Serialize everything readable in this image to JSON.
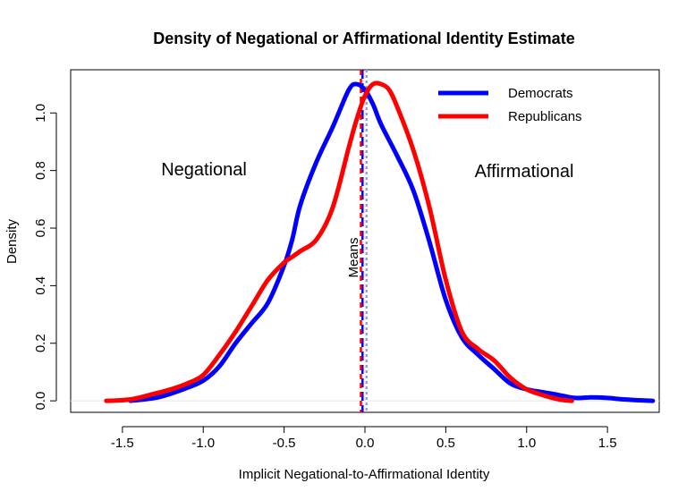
{
  "chart_data": {
    "type": "line",
    "title": "Density of Negational or Affirmational Identity Estimate",
    "xlabel": "Implicit Negational-to-Affirmational Identity",
    "ylabel": "Density",
    "xlim": [
      -1.82,
      1.82
    ],
    "ylim": [
      -0.04,
      1.15
    ],
    "xticks": [
      -1.5,
      -1.0,
      -0.5,
      0.0,
      0.5,
      1.0,
      1.5
    ],
    "xtick_labels": [
      "-1.5",
      "-1.0",
      "-0.5",
      "0.0",
      "0.5",
      "1.0",
      "1.5"
    ],
    "yticks": [
      0.0,
      0.2,
      0.4,
      0.6,
      0.8,
      1.0
    ],
    "ytick_labels": [
      "0.0",
      "0.2",
      "0.4",
      "0.6",
      "0.8",
      "1.0"
    ],
    "legend_position": "top-right",
    "grid": false,
    "series": [
      {
        "name": "Democrats",
        "color": "#0000ff",
        "x": [
          -1.45,
          -1.3,
          -1.2,
          -1.1,
          -1.0,
          -0.9,
          -0.8,
          -0.7,
          -0.6,
          -0.5,
          -0.45,
          -0.4,
          -0.3,
          -0.2,
          -0.1,
          -0.05,
          0.0,
          0.05,
          0.1,
          0.2,
          0.3,
          0.4,
          0.5,
          0.6,
          0.7,
          0.8,
          0.9,
          1.0,
          1.1,
          1.2,
          1.3,
          1.4,
          1.5,
          1.6,
          1.7,
          1.78
        ],
        "values": [
          0.0,
          0.01,
          0.025,
          0.045,
          0.07,
          0.12,
          0.2,
          0.27,
          0.34,
          0.47,
          0.56,
          0.68,
          0.83,
          0.95,
          1.08,
          1.1,
          1.08,
          1.03,
          0.96,
          0.85,
          0.73,
          0.55,
          0.35,
          0.22,
          0.16,
          0.11,
          0.06,
          0.04,
          0.03,
          0.02,
          0.01,
          0.012,
          0.01,
          0.005,
          0.002,
          0.0
        ]
      },
      {
        "name": "Republicans",
        "color": "#ff0000",
        "x": [
          -1.6,
          -1.45,
          -1.3,
          -1.2,
          -1.1,
          -1.0,
          -0.9,
          -0.8,
          -0.7,
          -0.6,
          -0.5,
          -0.45,
          -0.4,
          -0.3,
          -0.2,
          -0.1,
          -0.05,
          0.0,
          0.05,
          0.1,
          0.15,
          0.2,
          0.3,
          0.4,
          0.5,
          0.6,
          0.7,
          0.8,
          0.9,
          1.0,
          1.1,
          1.2,
          1.28
        ],
        "values": [
          0.0,
          0.005,
          0.025,
          0.04,
          0.06,
          0.09,
          0.16,
          0.24,
          0.33,
          0.42,
          0.48,
          0.5,
          0.52,
          0.56,
          0.67,
          0.88,
          0.98,
          1.06,
          1.1,
          1.1,
          1.08,
          1.02,
          0.87,
          0.67,
          0.42,
          0.24,
          0.18,
          0.14,
          0.08,
          0.04,
          0.02,
          0.005,
          0.0
        ]
      }
    ],
    "mean_lines": [
      {
        "series": "Democrats",
        "x": -0.015,
        "color": "#0000ff"
      },
      {
        "series": "Republicans",
        "x": -0.025,
        "color": "#ff0000"
      },
      {
        "series": "reference",
        "x": 0.01,
        "color": "#9aa0d0"
      }
    ],
    "annotations": {
      "left": "Negational",
      "right": "Affirmational",
      "means": "Means"
    }
  }
}
